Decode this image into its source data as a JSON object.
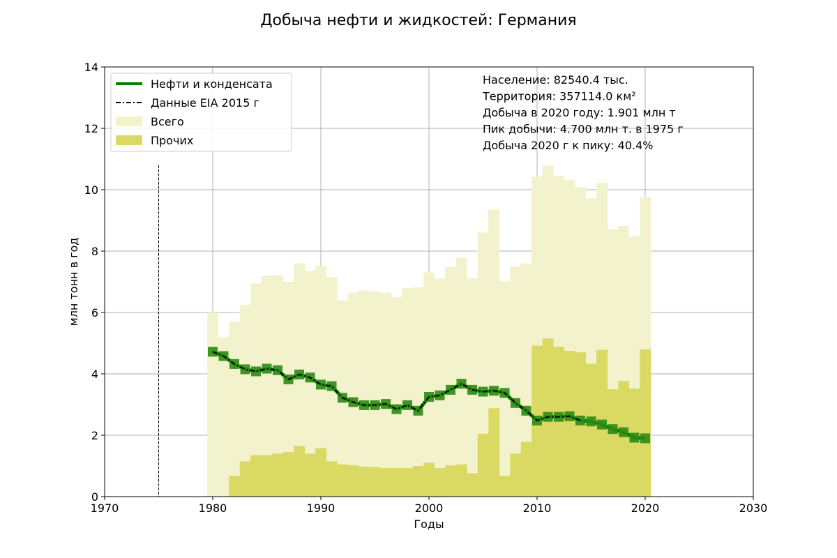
{
  "chart_data": {
    "type": "bar",
    "title": "Добыча нефти и жидкостей: Германия",
    "xlabel": "Годы",
    "ylabel": "млн тонн в год",
    "xlim": [
      1970,
      2030
    ],
    "ylim": [
      0,
      14
    ],
    "xticks": [
      "1970",
      "1980",
      "1990",
      "2000",
      "2010",
      "2020",
      "2030"
    ],
    "yticks": [
      "0",
      "2",
      "4",
      "6",
      "8",
      "10",
      "12",
      "14"
    ],
    "grid": true,
    "legend_position": "top-left",
    "legend": [
      {
        "label": "Нефти и конденсата",
        "kind": "line",
        "color": "#008000"
      },
      {
        "label": "Данные EIA 2015 г",
        "kind": "dashdot",
        "color": "#000000"
      },
      {
        "label": "Всего",
        "kind": "patch",
        "color": "#f2f2cc"
      },
      {
        "label": "Прочих",
        "kind": "patch",
        "color": "#d9d964"
      }
    ],
    "info_lines": [
      "Население: 82540.4 тыс.",
      "Территория: 357114.0 км²",
      "Добыча в 2020 году: 1.901 млн т",
      "Пик добычи: 4.700 млн т. в 1975 г",
      "Добыча 2020 г к пику: 40.4%"
    ],
    "vline_year": 1975,
    "vline_top": 10.8,
    "years": [
      1980,
      1981,
      1982,
      1983,
      1984,
      1985,
      1986,
      1987,
      1988,
      1989,
      1990,
      1991,
      1992,
      1993,
      1994,
      1995,
      1996,
      1997,
      1998,
      1999,
      2000,
      2001,
      2002,
      2003,
      2004,
      2005,
      2006,
      2007,
      2008,
      2009,
      2010,
      2011,
      2012,
      2013,
      2014,
      2015,
      2016,
      2017,
      2018,
      2019,
      2020
    ],
    "series": [
      {
        "name": "Всего",
        "color": "#f2f2cc",
        "values": [
          6.0,
          5.2,
          5.7,
          6.25,
          6.95,
          7.2,
          7.22,
          7.0,
          7.6,
          7.35,
          7.52,
          7.15,
          6.4,
          6.65,
          6.72,
          6.68,
          6.65,
          6.5,
          6.8,
          6.82,
          7.3,
          7.1,
          7.48,
          7.78,
          7.12,
          8.6,
          9.35,
          7.02,
          7.5,
          7.6,
          10.42,
          10.78,
          10.45,
          10.32,
          10.08,
          9.72,
          10.22,
          8.72,
          8.82,
          8.48,
          9.75
        ]
      },
      {
        "name": "Прочих",
        "color": "#d9d964",
        "values": [
          null,
          null,
          0.68,
          1.15,
          1.35,
          1.35,
          1.4,
          1.45,
          1.65,
          1.4,
          1.58,
          1.15,
          1.05,
          1.02,
          0.97,
          0.96,
          0.93,
          0.93,
          0.93,
          1.0,
          1.1,
          0.93,
          1.02,
          1.05,
          0.76,
          2.05,
          2.88,
          0.68,
          1.4,
          1.78,
          4.92,
          5.15,
          4.88,
          4.75,
          4.7,
          4.33,
          4.78,
          3.5,
          3.77,
          3.52,
          4.8
        ]
      },
      {
        "name": "Нефти и конденсата",
        "color": "#008000",
        "values": [
          4.72,
          4.58,
          4.32,
          4.15,
          4.08,
          4.17,
          4.12,
          3.82,
          3.98,
          3.88,
          3.65,
          3.6,
          3.22,
          3.08,
          2.98,
          2.98,
          3.02,
          2.85,
          2.98,
          2.8,
          3.25,
          3.3,
          3.48,
          3.68,
          3.48,
          3.42,
          3.45,
          3.38,
          3.05,
          2.8,
          2.48,
          2.6,
          2.6,
          2.62,
          2.48,
          2.45,
          2.35,
          2.2,
          2.1,
          1.92,
          1.9
        ]
      },
      {
        "name": "Данные EIA 2015 г",
        "color": "#000000",
        "values": [
          4.72,
          4.58,
          4.32,
          4.15,
          4.08,
          4.17,
          4.12,
          3.82,
          3.98,
          3.88,
          3.65,
          3.6,
          3.22,
          3.08,
          2.98,
          2.98,
          3.02,
          2.85,
          2.98,
          2.8,
          3.25,
          3.3,
          3.48,
          3.68,
          3.48,
          3.42,
          3.45,
          3.38,
          3.05,
          2.8,
          2.48,
          2.6,
          2.6,
          2.62,
          2.48
        ]
      }
    ]
  }
}
